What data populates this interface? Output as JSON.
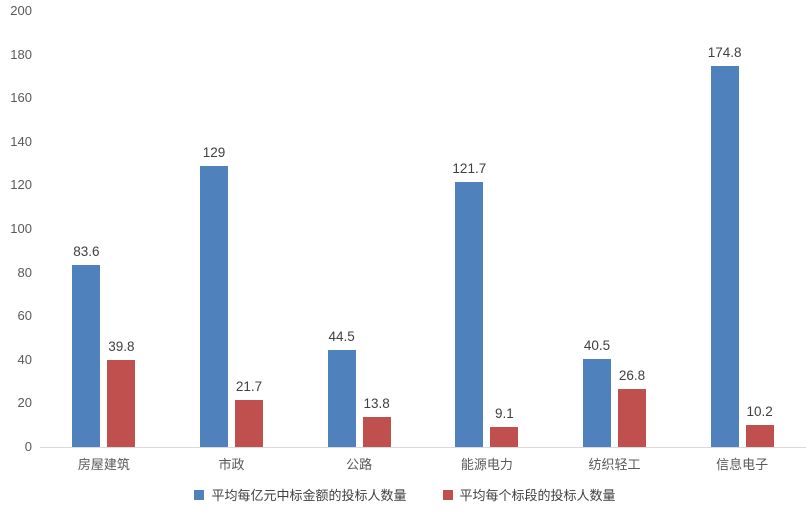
{
  "chart_data": {
    "type": "bar",
    "title": "",
    "xlabel": "",
    "ylabel": "",
    "categories": [
      "房屋建筑",
      "市政",
      "公路",
      "能源电力",
      "纺织轻工",
      "信息电子"
    ],
    "series": [
      {
        "name": "平均每亿元中标金额的投标人数量",
        "color": "#4F81BD",
        "values": [
          83.6,
          129,
          44.5,
          121.7,
          40.5,
          174.8
        ]
      },
      {
        "name": "平均每个标段的投标人数量",
        "color": "#C0504D",
        "values": [
          39.8,
          21.7,
          13.8,
          9.1,
          26.8,
          10.2
        ]
      }
    ],
    "ylim": [
      0,
      200
    ],
    "yticks": [
      0,
      20,
      40,
      60,
      80,
      100,
      120,
      140,
      160,
      180,
      200
    ],
    "grid": false,
    "legend_position": "bottom",
    "data_labels": true
  },
  "colors": {
    "background": "#ffffff",
    "axis_line": "#D9D9D9",
    "tick_text": "#595959",
    "category_text": "#595959",
    "value_text": "#404040",
    "legend_text": "#404040"
  }
}
